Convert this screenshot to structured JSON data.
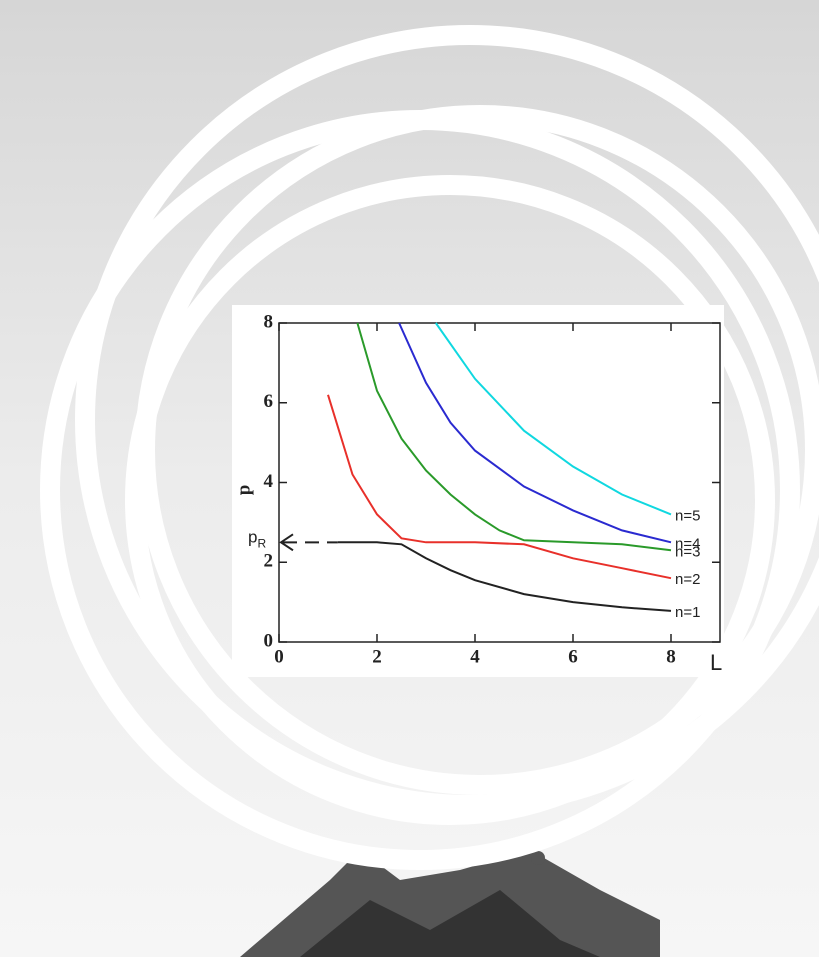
{
  "chart_data": {
    "type": "line",
    "x_label": "L",
    "y_label": "p",
    "annotation_label": "p",
    "annotation_subscript": "R",
    "annotation_y": 2.5,
    "xlim": [
      0,
      9
    ],
    "ylim": [
      0,
      8
    ],
    "xticks": [
      0,
      2,
      4,
      6,
      8
    ],
    "yticks": [
      0,
      2,
      4,
      6,
      8
    ],
    "series": [
      {
        "name": "n=1",
        "color": "#222222",
        "x": [
          1.2,
          1.5,
          2,
          2.5,
          3,
          3.5,
          4,
          5,
          6,
          7,
          8
        ],
        "values": [
          2.5,
          2.5,
          2.5,
          2.45,
          2.1,
          1.8,
          1.55,
          1.2,
          1.0,
          0.87,
          0.78
        ]
      },
      {
        "name": "n=2",
        "color": "#e8302a",
        "x": [
          1.0,
          1.5,
          2,
          2.5,
          3,
          4,
          5,
          6,
          7,
          8
        ],
        "values": [
          6.2,
          4.2,
          3.2,
          2.6,
          2.5,
          2.5,
          2.45,
          2.1,
          1.85,
          1.6
        ]
      },
      {
        "name": "n=3",
        "color": "#2a9a2a",
        "x": [
          1.6,
          2,
          2.5,
          3,
          3.5,
          4,
          4.5,
          5,
          6,
          7,
          8
        ],
        "values": [
          8,
          6.3,
          5.1,
          4.3,
          3.7,
          3.2,
          2.8,
          2.55,
          2.5,
          2.45,
          2.3
        ]
      },
      {
        "name": "n=4",
        "color": "#2a2ad0",
        "x": [
          2.45,
          3,
          3.5,
          4,
          5,
          6,
          7,
          8
        ],
        "values": [
          8,
          6.5,
          5.5,
          4.8,
          3.9,
          3.3,
          2.8,
          2.5
        ]
      },
      {
        "name": "n=5",
        "color": "#10d8e0",
        "x": [
          3.2,
          4,
          5,
          6,
          7,
          8
        ],
        "values": [
          8,
          6.6,
          5.3,
          4.4,
          3.7,
          3.2
        ]
      }
    ]
  }
}
